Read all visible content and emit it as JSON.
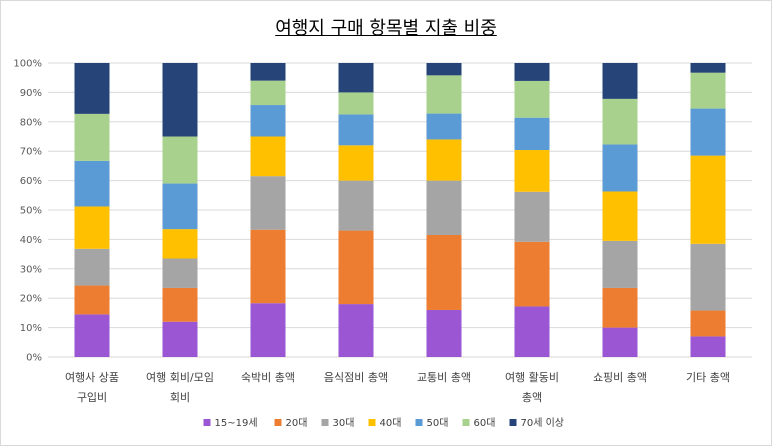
{
  "chart_data": {
    "type": "stacked_bar_percent",
    "title": "여행지 구매 항목별 지출 비중",
    "xlabel": "",
    "ylabel": "",
    "ylim": [
      0,
      100
    ],
    "y_ticks": [
      "0%",
      "10%",
      "20%",
      "30%",
      "40%",
      "50%",
      "60%",
      "70%",
      "80%",
      "90%",
      "100%"
    ],
    "grid": true,
    "legend_position": "bottom",
    "categories": [
      [
        "여행사 상품",
        "구입비"
      ],
      [
        "여행 회비/모임",
        "회비"
      ],
      [
        "숙박비 총액"
      ],
      [
        "음식점비 총액"
      ],
      [
        "교통비 총액"
      ],
      [
        "여행 활동비",
        "총액"
      ],
      [
        "쇼핑비 총액"
      ],
      [
        "기타 총액"
      ]
    ],
    "series": [
      {
        "name": "15~19세",
        "color": "#9b57d3",
        "values": [
          14.5,
          12,
          18.3,
          18,
          16,
          17.2,
          10,
          7
        ]
      },
      {
        "name": "20대",
        "color": "#ed7d31",
        "values": [
          9.8,
          11.5,
          25,
          25,
          25.5,
          22,
          13.5,
          8.8
        ]
      },
      {
        "name": "30대",
        "color": "#a5a5a5",
        "values": [
          12.5,
          10,
          18.2,
          17,
          18.5,
          17,
          16,
          22.7
        ]
      },
      {
        "name": "40대",
        "color": "#ffc000",
        "values": [
          14.4,
          10,
          13.5,
          12,
          14,
          14.2,
          16.8,
          30
        ]
      },
      {
        "name": "50대",
        "color": "#5b9bd5",
        "values": [
          15.5,
          15.5,
          10.7,
          10.5,
          8.8,
          11,
          16,
          16
        ]
      },
      {
        "name": "60대",
        "color": "#a9d18e",
        "values": [
          16,
          16,
          8.3,
          7.5,
          13,
          12.5,
          15.5,
          12.2
        ]
      },
      {
        "name": "70세 이상",
        "color": "#264478",
        "values": [
          17.3,
          25,
          6,
          10,
          4.2,
          6.1,
          12.2,
          3.3
        ]
      }
    ]
  }
}
